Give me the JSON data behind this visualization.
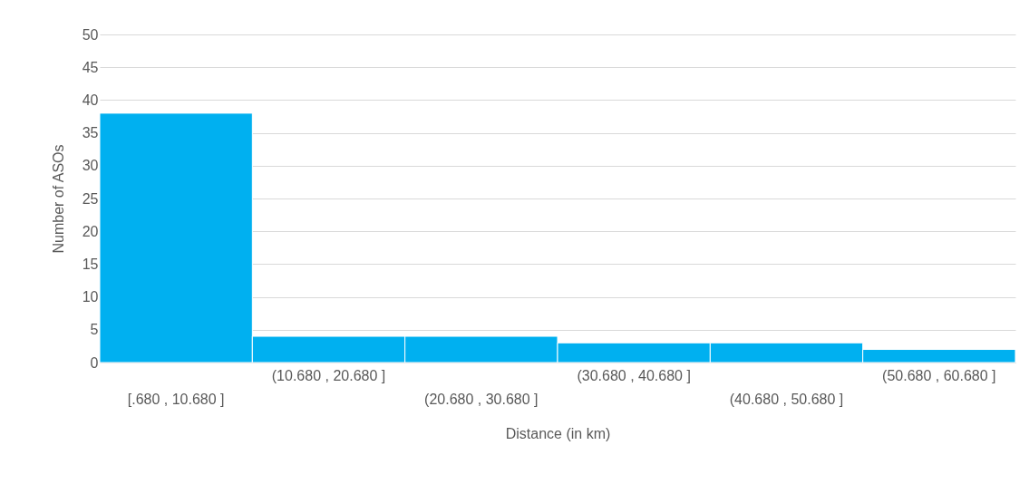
{
  "chart_data": {
    "type": "bar",
    "xlabel": "Distance (in km)",
    "ylabel": "Number of ASOs",
    "categories": [
      "[.680 , 10.680 ]",
      "(10.680 , 20.680 ]",
      "(20.680 , 30.680 ]",
      "(30.680 , 40.680 ]",
      "(40.680 , 50.680 ]",
      "(50.680 , 60.680 ]"
    ],
    "values": [
      38,
      4,
      4,
      3,
      3,
      2
    ],
    "color": "#00b0f0",
    "ylim": [
      0,
      50
    ],
    "yticks": [
      0,
      5,
      10,
      15,
      20,
      25,
      30,
      35,
      40,
      45,
      50
    ],
    "grid": "y"
  }
}
